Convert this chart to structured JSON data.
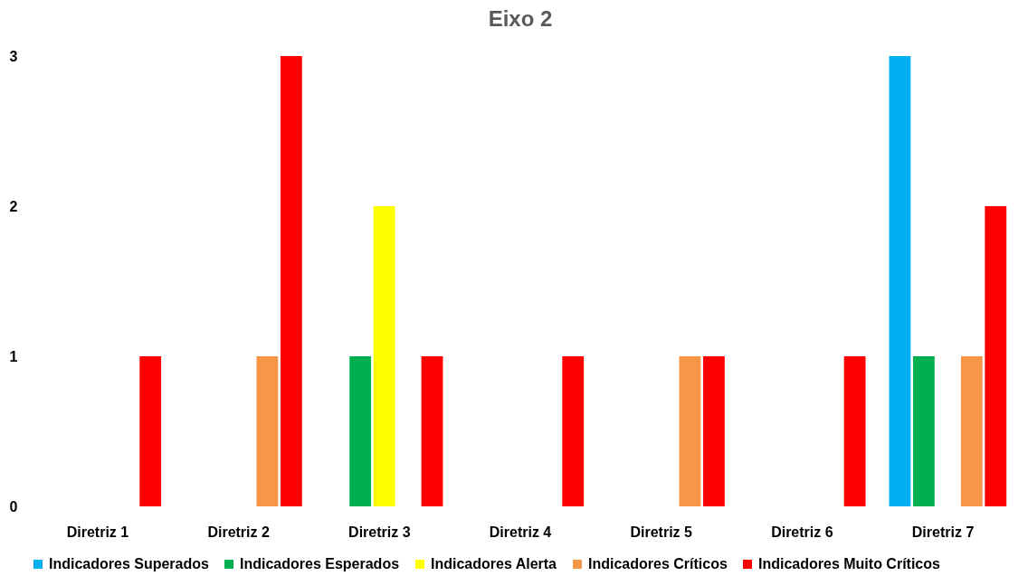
{
  "chart_data": {
    "type": "bar",
    "title": "Eixo 2",
    "categories": [
      "Diretriz 1",
      "Diretriz 2",
      "Diretriz 3",
      "Diretriz 4",
      "Diretriz 5",
      "Diretriz 6",
      "Diretriz 7"
    ],
    "series": [
      {
        "name": "Indicadores Superados",
        "color": "#00b0f0",
        "values": [
          0,
          0,
          0,
          0,
          0,
          0,
          3
        ]
      },
      {
        "name": "Indicadores Esperados",
        "color": "#00b050",
        "values": [
          0,
          0,
          1,
          0,
          0,
          0,
          1
        ]
      },
      {
        "name": "Indicadores Alerta",
        "color": "#ffff00",
        "values": [
          0,
          0,
          2,
          0,
          0,
          0,
          0
        ]
      },
      {
        "name": "Indicadores Críticos",
        "color": "#f79646",
        "values": [
          0,
          1,
          0,
          0,
          1,
          0,
          1
        ]
      },
      {
        "name": "Indicadores Muito Críticos",
        "color": "#ff0000",
        "values": [
          1,
          3,
          1,
          1,
          1,
          1,
          2
        ]
      }
    ],
    "ylim": [
      0,
      3
    ],
    "yticks": [
      0,
      1,
      2,
      3
    ],
    "grid": false,
    "legend": "bottom"
  }
}
